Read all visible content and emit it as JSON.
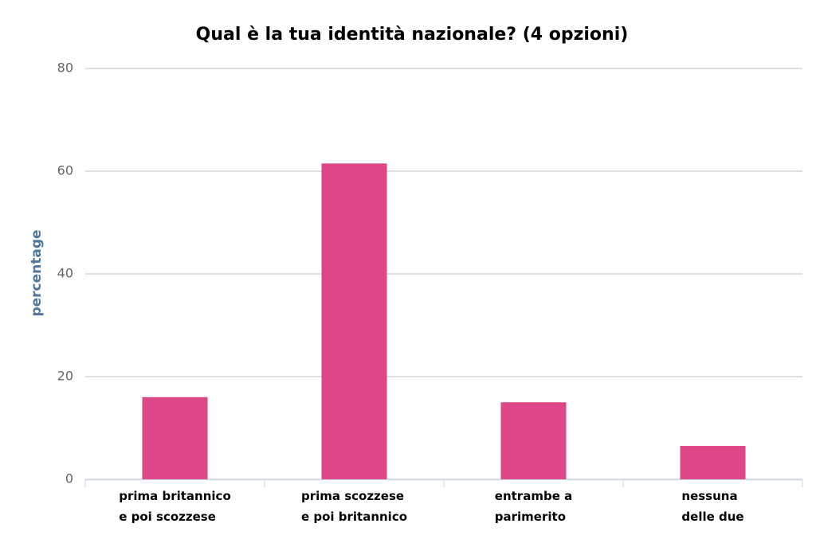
{
  "chart_data": {
    "type": "bar",
    "title": "Qual è la tua identità nazionale? (4 opzioni)",
    "y_label": "percentage",
    "categories": [
      "prima britannico\ne poi scozzese",
      "prima scozzese\ne poi britannico",
      "entrambe a\nparimerito",
      "nessuna\ndelle due"
    ],
    "values": [
      16,
      61.5,
      15,
      6.5
    ],
    "color": "#dd4787",
    "ylim": [
      0,
      80
    ],
    "yticks": [
      0,
      20,
      40,
      60,
      80
    ],
    "grid": true
  }
}
